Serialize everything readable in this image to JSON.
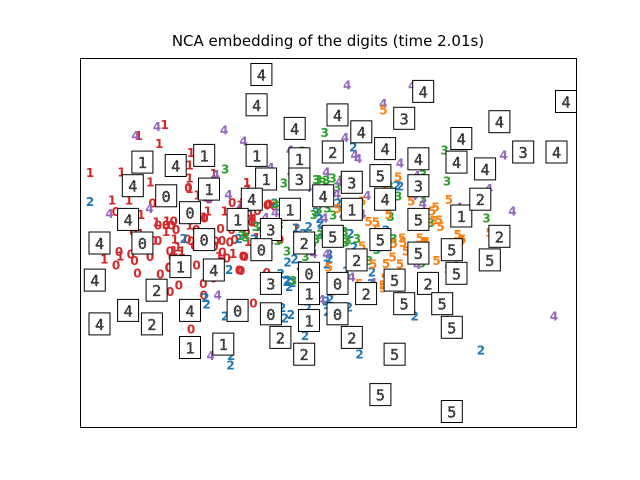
{
  "chart_data": {
    "type": "scatter",
    "title": "NCA embedding of the digits (time 2.01s)",
    "xlabel": "",
    "ylabel": "",
    "axes_ticks": false,
    "xlim": [
      0,
      100
    ],
    "ylim": [
      0,
      100
    ],
    "classes": [
      "0",
      "1",
      "2",
      "3",
      "4",
      "5"
    ],
    "class_colors": {
      "0": "#d62728",
      "1": "#d62728",
      "2": "#1f77b4",
      "3": "#2ca02c",
      "4": "#9467bd",
      "5": "#ff7f0e"
    },
    "thumbnails": [
      {
        "digit": "4",
        "x": 36,
        "y": 100
      },
      {
        "digit": "4",
        "x": 35,
        "y": 91
      },
      {
        "digit": "4",
        "x": 70,
        "y": 95
      },
      {
        "digit": "4",
        "x": 100,
        "y": 92
      },
      {
        "digit": "4",
        "x": 43,
        "y": 84
      },
      {
        "digit": "4",
        "x": 52,
        "y": 88
      },
      {
        "digit": "3",
        "x": 66,
        "y": 87
      },
      {
        "digit": "4",
        "x": 57,
        "y": 83
      },
      {
        "digit": "4",
        "x": 86,
        "y": 86
      },
      {
        "digit": "4",
        "x": 78,
        "y": 81
      },
      {
        "digit": "3",
        "x": 91,
        "y": 77
      },
      {
        "digit": "4",
        "x": 98,
        "y": 77
      },
      {
        "digit": "4",
        "x": 62,
        "y": 78
      },
      {
        "digit": "1",
        "x": 11,
        "y": 74
      },
      {
        "digit": "4",
        "x": 18,
        "y": 73
      },
      {
        "digit": "1",
        "x": 24,
        "y": 76
      },
      {
        "digit": "1",
        "x": 35,
        "y": 76
      },
      {
        "digit": "1",
        "x": 44,
        "y": 75
      },
      {
        "digit": "2",
        "x": 51,
        "y": 77
      },
      {
        "digit": "4",
        "x": 69,
        "y": 75
      },
      {
        "digit": "4",
        "x": 77,
        "y": 74
      },
      {
        "digit": "4",
        "x": 83,
        "y": 72
      },
      {
        "digit": "1",
        "x": 37,
        "y": 69
      },
      {
        "digit": "3",
        "x": 44,
        "y": 69
      },
      {
        "digit": "3",
        "x": 55,
        "y": 68
      },
      {
        "digit": "5",
        "x": 61,
        "y": 70
      },
      {
        "digit": "3",
        "x": 69,
        "y": 67
      },
      {
        "digit": "4",
        "x": 9,
        "y": 67
      },
      {
        "digit": "1",
        "x": 25,
        "y": 66
      },
      {
        "digit": "0",
        "x": 16,
        "y": 64
      },
      {
        "digit": "4",
        "x": 34,
        "y": 63
      },
      {
        "digit": "4",
        "x": 49,
        "y": 64
      },
      {
        "digit": "1",
        "x": 55,
        "y": 60
      },
      {
        "digit": "4",
        "x": 62,
        "y": 63
      },
      {
        "digit": "0",
        "x": 21,
        "y": 59
      },
      {
        "digit": "1",
        "x": 31,
        "y": 57
      },
      {
        "digit": "1",
        "x": 42,
        "y": 60
      },
      {
        "digit": "5",
        "x": 69,
        "y": 57
      },
      {
        "digit": "1",
        "x": 78,
        "y": 58
      },
      {
        "digit": "2",
        "x": 82,
        "y": 63
      },
      {
        "digit": "4",
        "x": 8,
        "y": 57
      },
      {
        "digit": "3",
        "x": 38,
        "y": 54
      },
      {
        "digit": "2",
        "x": 86,
        "y": 52
      },
      {
        "digit": "4",
        "x": 2,
        "y": 50
      },
      {
        "digit": "0",
        "x": 11,
        "y": 50
      },
      {
        "digit": "0",
        "x": 24,
        "y": 51
      },
      {
        "digit": "5",
        "x": 51,
        "y": 52
      },
      {
        "digit": "5",
        "x": 61,
        "y": 51
      },
      {
        "digit": "2",
        "x": 45,
        "y": 50
      },
      {
        "digit": "0",
        "x": 36,
        "y": 48
      },
      {
        "digit": "5",
        "x": 69,
        "y": 47
      },
      {
        "digit": "5",
        "x": 76,
        "y": 48
      },
      {
        "digit": "2",
        "x": 56,
        "y": 45
      },
      {
        "digit": "5",
        "x": 84,
        "y": 45
      },
      {
        "digit": "1",
        "x": 19,
        "y": 43
      },
      {
        "digit": "4",
        "x": 26,
        "y": 42
      },
      {
        "digit": "0",
        "x": 46,
        "y": 41
      },
      {
        "digit": "5",
        "x": 77,
        "y": 41
      },
      {
        "digit": "4",
        "x": 1,
        "y": 39
      },
      {
        "digit": "3",
        "x": 38,
        "y": 38
      },
      {
        "digit": "0",
        "x": 52,
        "y": 38
      },
      {
        "digit": "5",
        "x": 64,
        "y": 39
      },
      {
        "digit": "2",
        "x": 71,
        "y": 38
      },
      {
        "digit": "2",
        "x": 14,
        "y": 36
      },
      {
        "digit": "1",
        "x": 46,
        "y": 35
      },
      {
        "digit": "2",
        "x": 58,
        "y": 35
      },
      {
        "digit": "5",
        "x": 66,
        "y": 32
      },
      {
        "digit": "5",
        "x": 74,
        "y": 32
      },
      {
        "digit": "4",
        "x": 8,
        "y": 30
      },
      {
        "digit": "4",
        "x": 21,
        "y": 30
      },
      {
        "digit": "0",
        "x": 31,
        "y": 30
      },
      {
        "digit": "0",
        "x": 38,
        "y": 29
      },
      {
        "digit": "0",
        "x": 52,
        "y": 29
      },
      {
        "digit": "4",
        "x": 2,
        "y": 26
      },
      {
        "digit": "2",
        "x": 13,
        "y": 26
      },
      {
        "digit": "1",
        "x": 46,
        "y": 27
      },
      {
        "digit": "5",
        "x": 76,
        "y": 25
      },
      {
        "digit": "2",
        "x": 40,
        "y": 22
      },
      {
        "digit": "2",
        "x": 55,
        "y": 22
      },
      {
        "digit": "1",
        "x": 21,
        "y": 19
      },
      {
        "digit": "1",
        "x": 28,
        "y": 20
      },
      {
        "digit": "2",
        "x": 45,
        "y": 17
      },
      {
        "digit": "5",
        "x": 64,
        "y": 17
      },
      {
        "digit": "5",
        "x": 61,
        "y": 5
      },
      {
        "digit": "5",
        "x": 76,
        "y": 0
      }
    ]
  }
}
